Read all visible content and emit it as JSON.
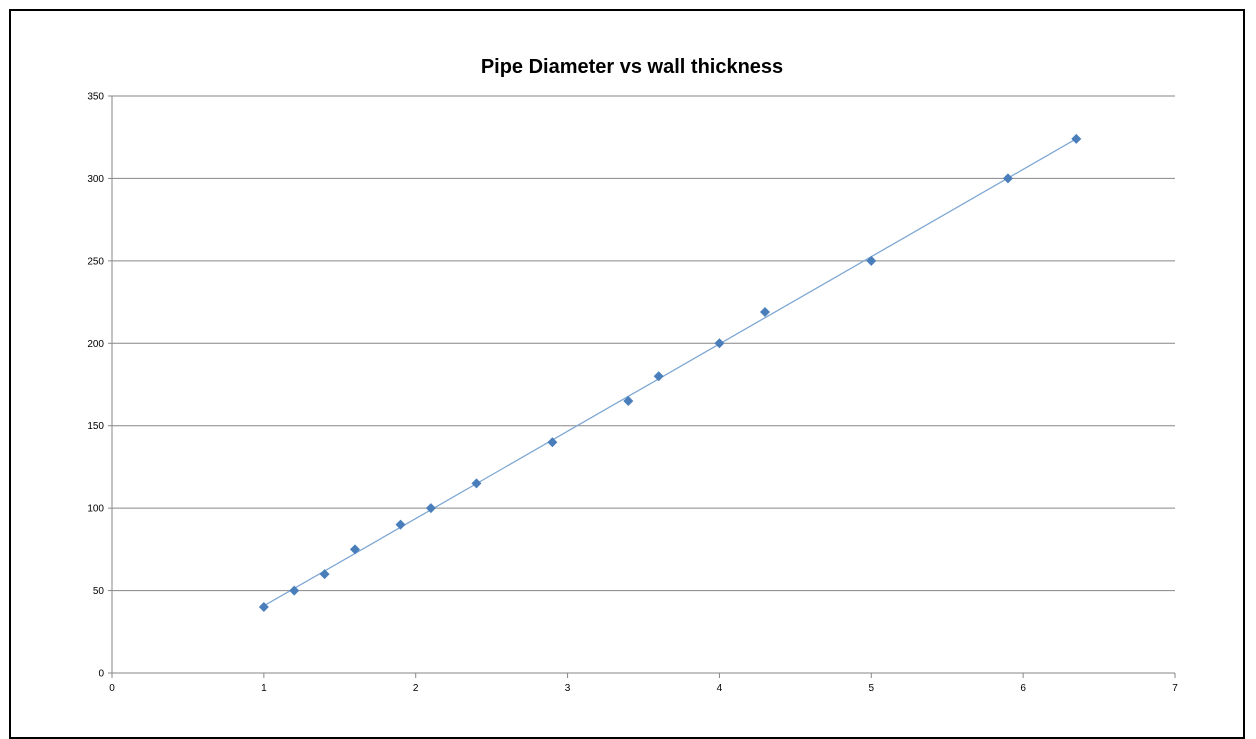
{
  "chart_data": {
    "type": "scatter",
    "title": "Pipe Diameter vs wall thickness",
    "xlabel": "",
    "ylabel": "",
    "xlim": [
      0,
      7
    ],
    "ylim": [
      0,
      350
    ],
    "x_ticks": [
      "0",
      "1",
      "2",
      "3",
      "4",
      "5",
      "6",
      "7"
    ],
    "y_ticks": [
      "0",
      "50",
      "100",
      "150",
      "200",
      "250",
      "300",
      "350"
    ],
    "grid": "horizontal",
    "legend": "none",
    "marker": "diamond",
    "marker_color": "#4A7EBB",
    "trendline": {
      "type": "linear",
      "color": "#7FA8D4",
      "x_range": [
        1,
        6.35
      ]
    },
    "series": [
      {
        "x": [
          1,
          1.2,
          1.4,
          1.6,
          1.9,
          2.1,
          2.4,
          2.9,
          3.4,
          3.6,
          4,
          4.3,
          5,
          5.9,
          6.35
        ],
        "y": [
          40,
          50,
          60,
          75,
          90,
          100,
          115,
          140,
          165,
          180,
          200,
          219,
          250,
          300,
          324
        ]
      }
    ]
  }
}
